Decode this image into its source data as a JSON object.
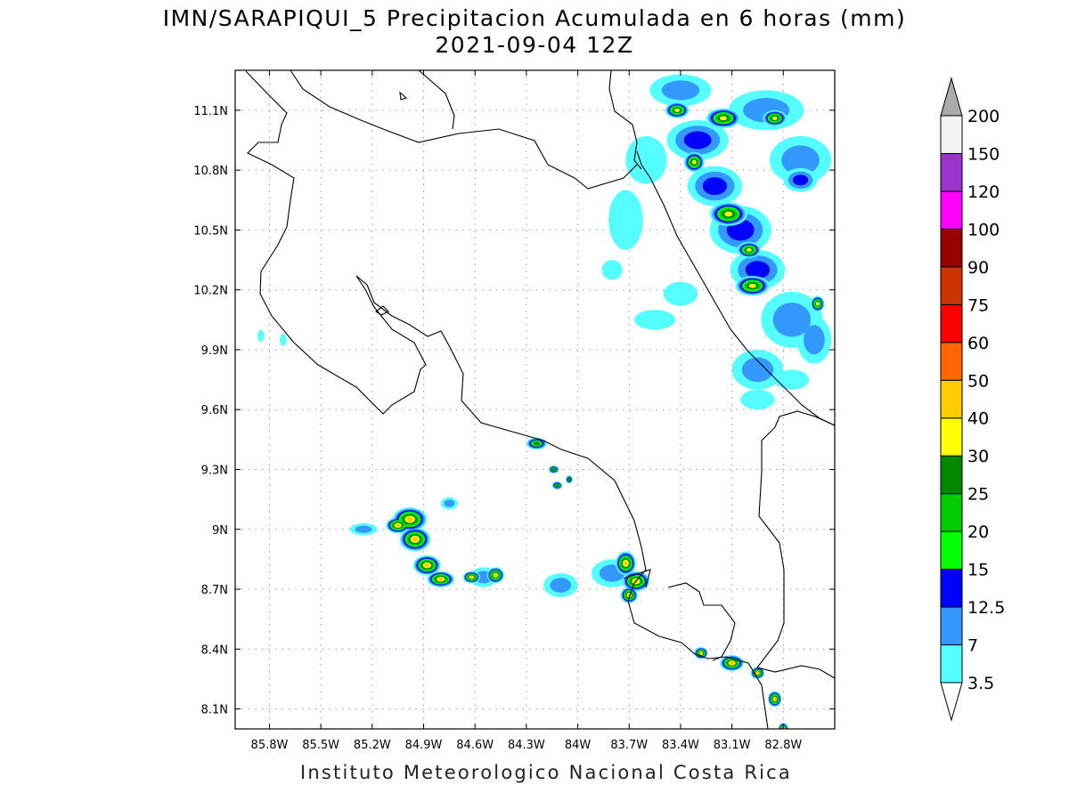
{
  "title": {
    "line1": "IMN/SARAPIQUI_5 Precipitacion Acumulada en 6 horas (mm)",
    "line2": "2021-09-04 12Z"
  },
  "footer": "Instituto Meteorologico Nacional Costa Rica",
  "map": {
    "lon_range": [
      -86.0,
      -82.5
    ],
    "lat_range": [
      8.0,
      11.3
    ],
    "lon_ticks": [
      {
        "value": -85.8,
        "label": "85.8W"
      },
      {
        "value": -85.5,
        "label": "85.5W"
      },
      {
        "value": -85.2,
        "label": "85.2W"
      },
      {
        "value": -84.9,
        "label": "84.9W"
      },
      {
        "value": -84.6,
        "label": "84.6W"
      },
      {
        "value": -84.3,
        "label": "84.3W"
      },
      {
        "value": -84.0,
        "label": "84W"
      },
      {
        "value": -83.7,
        "label": "83.7W"
      },
      {
        "value": -83.4,
        "label": "83.4W"
      },
      {
        "value": -83.1,
        "label": "83.1W"
      },
      {
        "value": -82.8,
        "label": "82.8W"
      }
    ],
    "lat_ticks": [
      {
        "value": 8.1,
        "label": "8.1N"
      },
      {
        "value": 8.4,
        "label": "8.4N"
      },
      {
        "value": 8.7,
        "label": "8.7N"
      },
      {
        "value": 9.0,
        "label": "9N"
      },
      {
        "value": 9.3,
        "label": "9.3N"
      },
      {
        "value": 9.6,
        "label": "9.6N"
      },
      {
        "value": 9.9,
        "label": "9.9N"
      },
      {
        "value": 10.2,
        "label": "10.2N"
      },
      {
        "value": 10.5,
        "label": "10.5N"
      },
      {
        "value": 10.8,
        "label": "10.8N"
      },
      {
        "value": 11.1,
        "label": "11.1N"
      }
    ],
    "grid": true,
    "features": [
      {
        "name": "cluster-north-caribbean",
        "level": "30",
        "points": [
          [
            -83.42,
            11.1,
            0.07,
            0.04
          ],
          [
            -83.15,
            11.06,
            0.1,
            0.05
          ],
          [
            -82.85,
            11.06,
            0.07,
            0.04
          ],
          [
            -83.32,
            10.84,
            0.06,
            0.05
          ],
          [
            -83.12,
            10.58,
            0.11,
            0.06
          ],
          [
            -83.0,
            10.4,
            0.07,
            0.04
          ],
          [
            -82.98,
            10.22,
            0.1,
            0.05
          ],
          [
            -82.6,
            10.13,
            0.04,
            0.04
          ]
        ]
      },
      {
        "name": "cluster-north-coast-diagonal",
        "level": "12.5",
        "points": [
          [
            -83.3,
            10.95,
            0.18,
            0.1
          ],
          [
            -83.2,
            10.72,
            0.16,
            0.1
          ],
          [
            -83.05,
            10.5,
            0.18,
            0.12
          ],
          [
            -82.95,
            10.3,
            0.16,
            0.1
          ],
          [
            -82.7,
            10.75,
            0.1,
            0.06
          ]
        ]
      },
      {
        "name": "cluster-far-ne-band",
        "level": "7",
        "points": [
          [
            -83.4,
            11.2,
            0.18,
            0.08
          ],
          [
            -82.9,
            11.1,
            0.22,
            0.1
          ],
          [
            -82.7,
            10.85,
            0.18,
            0.12
          ],
          [
            -82.75,
            10.05,
            0.18,
            0.14
          ],
          [
            -82.95,
            9.8,
            0.15,
            0.1
          ],
          [
            -82.62,
            9.95,
            0.1,
            0.12
          ]
        ]
      },
      {
        "name": "cluster-northwest-coastal-strip",
        "level": "3.5",
        "points": [
          [
            -83.6,
            10.85,
            0.12,
            0.12
          ],
          [
            -83.72,
            10.55,
            0.1,
            0.15
          ],
          [
            -83.8,
            10.3,
            0.06,
            0.05
          ],
          [
            -83.55,
            10.05,
            0.12,
            0.05
          ],
          [
            -83.4,
            10.18,
            0.1,
            0.06
          ],
          [
            -82.95,
            9.65,
            0.1,
            0.05
          ],
          [
            -82.75,
            9.75,
            0.1,
            0.05
          ],
          [
            -85.72,
            9.95,
            0.02,
            0.03
          ],
          [
            -85.85,
            9.97,
            0.02,
            0.03
          ]
        ]
      },
      {
        "name": "cluster-parrita",
        "level": "25",
        "points": [
          [
            -84.24,
            9.43,
            0.06,
            0.03
          ],
          [
            -84.14,
            9.3,
            0.03,
            0.02
          ],
          [
            -84.12,
            9.22,
            0.03,
            0.02
          ],
          [
            -84.05,
            9.25,
            0.02,
            0.02
          ]
        ]
      },
      {
        "name": "cluster-west-gulf-nicoya",
        "level": "40",
        "points": [
          [
            -84.98,
            9.05,
            0.1,
            0.06
          ],
          [
            -84.95,
            8.95,
            0.09,
            0.06
          ],
          [
            -84.88,
            8.82,
            0.08,
            0.05
          ],
          [
            -84.8,
            8.75,
            0.08,
            0.04
          ],
          [
            -85.05,
            9.02,
            0.07,
            0.04
          ]
        ]
      },
      {
        "name": "cluster-west-ocean-halo",
        "level": "7",
        "points": [
          [
            -85.25,
            9.0,
            0.08,
            0.03
          ],
          [
            -84.75,
            9.13,
            0.05,
            0.03
          ],
          [
            -84.55,
            8.76,
            0.08,
            0.05
          ],
          [
            -84.1,
            8.72,
            0.1,
            0.06
          ],
          [
            -83.8,
            8.78,
            0.12,
            0.07
          ]
        ]
      },
      {
        "name": "cluster-quepos-offshore",
        "level": "40",
        "points": [
          [
            -84.48,
            8.77,
            0.05,
            0.04
          ],
          [
            -84.62,
            8.76,
            0.05,
            0.03
          ]
        ]
      },
      {
        "name": "cluster-osa",
        "level": "40",
        "points": [
          [
            -83.72,
            8.83,
            0.06,
            0.06
          ],
          [
            -83.66,
            8.74,
            0.08,
            0.05
          ],
          [
            -83.7,
            8.67,
            0.05,
            0.04
          ]
        ]
      },
      {
        "name": "cluster-burica-south",
        "level": "40",
        "points": [
          [
            -83.1,
            8.33,
            0.07,
            0.04
          ],
          [
            -83.28,
            8.38,
            0.04,
            0.03
          ],
          [
            -82.95,
            8.28,
            0.04,
            0.03
          ],
          [
            -82.85,
            8.15,
            0.04,
            0.04
          ],
          [
            -82.8,
            8.0,
            0.03,
            0.03
          ]
        ]
      }
    ]
  },
  "colorbar": {
    "colors": [
      "#ffffff",
      "#55ffff",
      "#3399ff",
      "#0000ff",
      "#00ff00",
      "#00cc00",
      "#008800",
      "#ffff00",
      "#ffcc00",
      "#ff6600",
      "#ff0000",
      "#cc3300",
      "#990000",
      "#ff00ff",
      "#9933cc",
      "#f4f4f4",
      "#aaaaaa"
    ],
    "labels": [
      "3.5",
      "7",
      "12.5",
      "15",
      "20",
      "25",
      "30",
      "40",
      "50",
      "60",
      "75",
      "90",
      "100",
      "120",
      "150",
      "200"
    ]
  }
}
